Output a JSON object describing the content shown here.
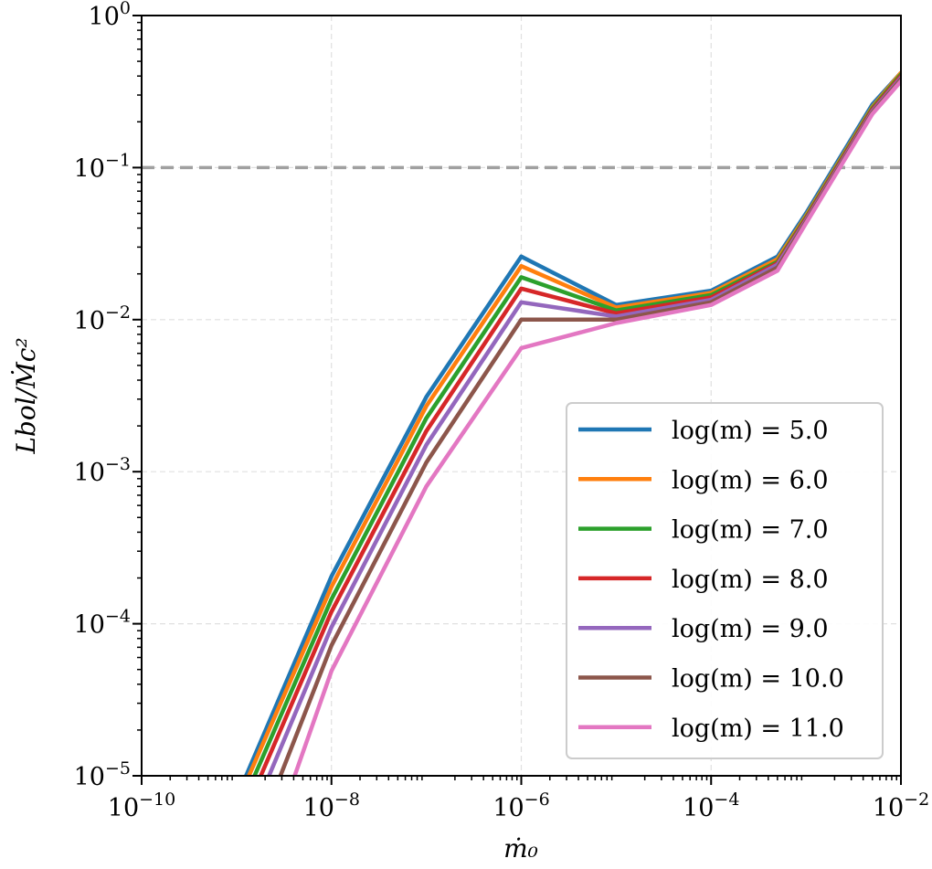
{
  "chart_data": {
    "type": "line",
    "xscale": "log",
    "yscale": "log",
    "xlim": [
      1e-10,
      0.01
    ],
    "ylim": [
      1e-05,
      1
    ],
    "xlabel": "ṁ₀",
    "ylabel": "Lbol/Ṁc²",
    "grid": true,
    "legend_position": "lower-right",
    "x_ticks": [
      {
        "base": "10",
        "exp": "−10",
        "value": 1e-10
      },
      {
        "base": "10",
        "exp": "−8",
        "value": 1e-08
      },
      {
        "base": "10",
        "exp": "−6",
        "value": 1e-06
      },
      {
        "base": "10",
        "exp": "−4",
        "value": 0.0001
      },
      {
        "base": "10",
        "exp": "−2",
        "value": 0.01
      }
    ],
    "y_ticks": [
      {
        "base": "10",
        "exp": "−5",
        "value": 1e-05
      },
      {
        "base": "10",
        "exp": "−4",
        "value": 0.0001
      },
      {
        "base": "10",
        "exp": "−3",
        "value": 0.001
      },
      {
        "base": "10",
        "exp": "−2",
        "value": 0.01
      },
      {
        "base": "10",
        "exp": "−1",
        "value": 0.1
      },
      {
        "base": "10",
        "exp": "0",
        "value": 1
      }
    ],
    "reference_line": {
      "y": 0.1,
      "style": "dashed",
      "color": "#a0a0a0"
    },
    "series": [
      {
        "name": "log(m) = 5.0",
        "color": "#1f77b4",
        "x": [
          1.26e-09,
          1e-08,
          1e-07,
          1e-06,
          1e-05,
          0.0001,
          0.0005,
          0.001,
          0.005,
          0.01
        ],
        "y": [
          1e-05,
          0.000205,
          0.0031,
          0.026,
          0.0125,
          0.0155,
          0.026,
          0.05,
          0.26,
          0.42
        ]
      },
      {
        "name": "log(m) = 6.0",
        "color": "#ff7f0e",
        "x": [
          1.35e-09,
          1e-08,
          1e-07,
          1e-06,
          1e-05,
          0.0001,
          0.0005,
          0.001,
          0.005,
          0.01
        ],
        "y": [
          1e-05,
          0.000175,
          0.0027,
          0.0225,
          0.012,
          0.015,
          0.025,
          0.048,
          0.25,
          0.42
        ]
      },
      {
        "name": "log(m) = 7.0",
        "color": "#2ca02c",
        "x": [
          1.55e-09,
          1e-08,
          1e-07,
          1e-06,
          1e-05,
          0.0001,
          0.0005,
          0.001,
          0.005,
          0.01
        ],
        "y": [
          1e-05,
          0.000145,
          0.00225,
          0.019,
          0.0115,
          0.0145,
          0.024,
          0.047,
          0.245,
          0.41
        ]
      },
      {
        "name": "log(m) = 8.0",
        "color": "#d62728",
        "x": [
          1.8e-09,
          1e-08,
          1e-07,
          1e-06,
          1e-05,
          0.0001,
          0.0005,
          0.001,
          0.005,
          0.01
        ],
        "y": [
          1e-05,
          0.00012,
          0.00185,
          0.016,
          0.011,
          0.014,
          0.0235,
          0.046,
          0.24,
          0.4
        ]
      },
      {
        "name": "log(m) = 9.0",
        "color": "#9467bd",
        "x": [
          2.2e-09,
          1e-08,
          1e-07,
          1e-06,
          1e-05,
          0.0001,
          0.0005,
          0.001,
          0.005,
          0.01
        ],
        "y": [
          1e-05,
          9.5e-05,
          0.0015,
          0.013,
          0.0105,
          0.0135,
          0.023,
          0.045,
          0.235,
          0.39
        ]
      },
      {
        "name": "log(m) = 10.0",
        "color": "#8c564b",
        "x": [
          2.9e-09,
          1e-08,
          1e-07,
          1e-06,
          1e-05,
          0.0001,
          0.0005,
          0.001,
          0.005,
          0.01
        ],
        "y": [
          1e-05,
          7.2e-05,
          0.00115,
          0.01,
          0.01,
          0.013,
          0.022,
          0.044,
          0.23,
          0.38
        ]
      },
      {
        "name": "log(m) = 11.0",
        "color": "#e377c2",
        "x": [
          4.1e-09,
          1e-08,
          1e-07,
          1e-06,
          1e-05,
          0.0001,
          0.0005,
          0.001,
          0.005,
          0.01
        ],
        "y": [
          1e-05,
          4.9e-05,
          0.0008,
          0.0065,
          0.0095,
          0.0125,
          0.021,
          0.043,
          0.225,
          0.37
        ]
      }
    ]
  }
}
